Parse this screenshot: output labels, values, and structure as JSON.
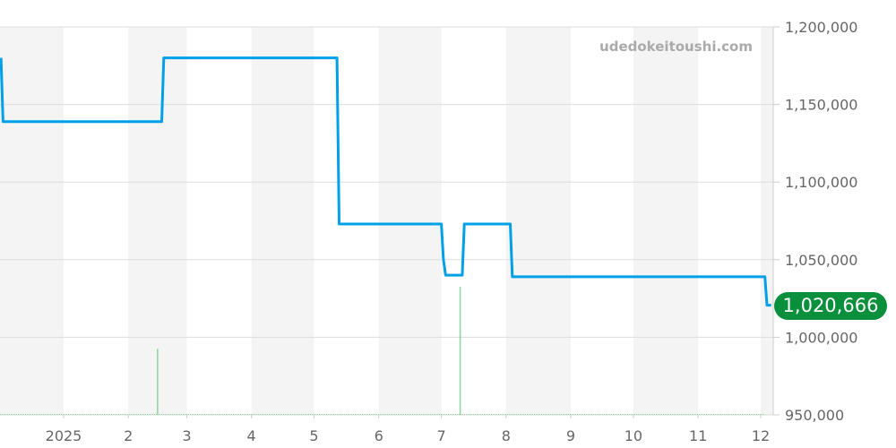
{
  "watermark": "udedokeitoushi.com",
  "chart_data": {
    "type": "line",
    "title": "",
    "xlabel": "",
    "ylabel": "",
    "ylim": [
      950000,
      1200000
    ],
    "xlim": [
      "2024-12-01",
      "2025-12-07"
    ],
    "grid": true,
    "y_ticks": [
      "1,200,000",
      "1,150,000",
      "1,100,000",
      "1,050,000",
      "1,000,000",
      "950,000"
    ],
    "y_tick_values": [
      1200000,
      1150000,
      1100000,
      1050000,
      1000000,
      950000
    ],
    "x_ticks": [
      {
        "date": "2025-01-01",
        "label": "2025"
      },
      {
        "date": "2025-02-01",
        "label": "2"
      },
      {
        "date": "2025-03-01",
        "label": "3"
      },
      {
        "date": "2025-04-01",
        "label": "4"
      },
      {
        "date": "2025-05-01",
        "label": "5"
      },
      {
        "date": "2025-06-01",
        "label": "6"
      },
      {
        "date": "2025-07-01",
        "label": "7"
      },
      {
        "date": "2025-08-01",
        "label": "8"
      },
      {
        "date": "2025-09-01",
        "label": "9"
      },
      {
        "date": "2025-10-01",
        "label": "10"
      },
      {
        "date": "2025-11-01",
        "label": "11"
      },
      {
        "date": "2025-12-01",
        "label": "12"
      }
    ],
    "series": [
      {
        "type": "step-line",
        "color": "#00a0e9",
        "points": [
          [
            "2024-12-02",
            1180000
          ],
          [
            "2024-12-03",
            1139000
          ],
          [
            "2025-02-17",
            1139000
          ],
          [
            "2025-02-18",
            1180000
          ],
          [
            "2025-05-12",
            1180000
          ],
          [
            "2025-05-13",
            1073000
          ],
          [
            "2025-07-01",
            1073000
          ],
          [
            "2025-07-02",
            1050000
          ],
          [
            "2025-07-03",
            1040000
          ],
          [
            "2025-07-11",
            1040000
          ],
          [
            "2025-07-12",
            1073000
          ],
          [
            "2025-08-03",
            1073000
          ],
          [
            "2025-08-04",
            1039000
          ],
          [
            "2025-12-03",
            1039000
          ],
          [
            "2025-12-04",
            1020666
          ],
          [
            "2025-12-06",
            1020666
          ]
        ]
      },
      {
        "type": "volume-bar",
        "color": "#8fd19e",
        "relative_values": [
          {
            "date": "2025-02-15",
            "value": 0.17
          },
          {
            "date": "2025-07-10",
            "value": 0.33
          }
        ]
      }
    ],
    "last_value_label": "1,020,666",
    "last_value_color": "#0a8f3c",
    "band_color": "#f4f4f4"
  }
}
